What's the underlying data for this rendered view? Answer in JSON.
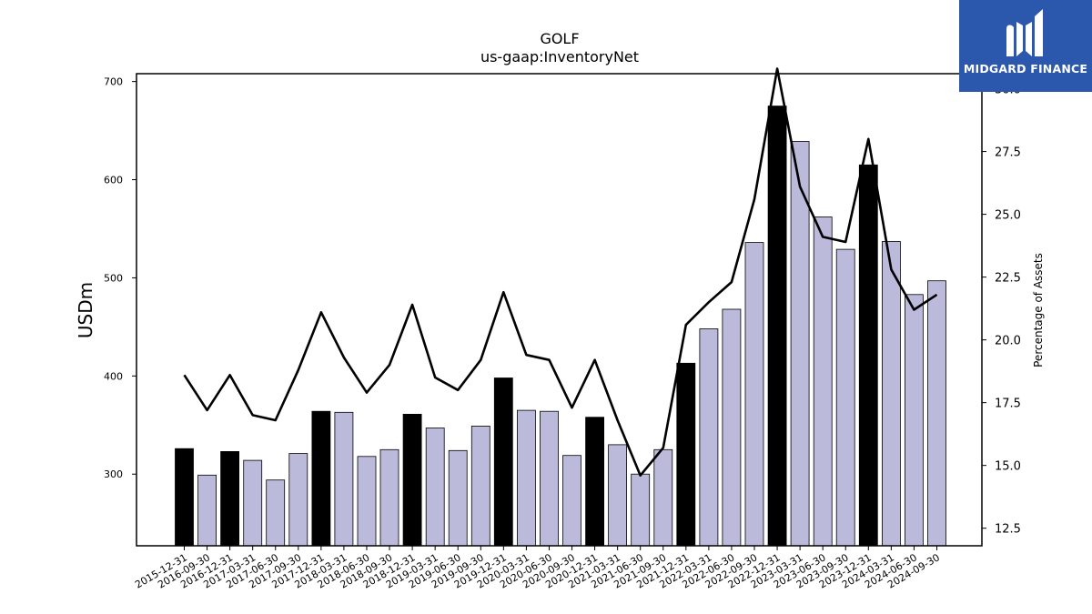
{
  "chart_data": {
    "type": "bar",
    "title": "GOLF",
    "subtitle": "us-gaap:InventoryNet",
    "ylabel": "USDm",
    "y2label": "Percentage of Assets",
    "ylim": [
      227,
      708
    ],
    "y2lim": [
      11.8,
      30.6
    ],
    "yticks": [
      300,
      400,
      500,
      600,
      700
    ],
    "y2ticks": [
      "12.5",
      "15.0",
      "17.5",
      "20.0",
      "22.5",
      "25.0",
      "27.5",
      "30.0"
    ],
    "categories": [
      "2015-12-31",
      "2016-09-30",
      "2016-12-31",
      "2017-03-31",
      "2017-06-30",
      "2017-09-30",
      "2017-12-31",
      "2018-03-31",
      "2018-06-30",
      "2018-09-30",
      "2018-12-31",
      "2019-03-31",
      "2019-06-30",
      "2019-09-30",
      "2019-12-31",
      "2020-03-31",
      "2020-06-30",
      "2020-09-30",
      "2020-12-31",
      "2021-03-31",
      "2021-06-30",
      "2021-09-30",
      "2021-12-31",
      "2022-03-31",
      "2022-06-30",
      "2022-09-30",
      "2022-12-31",
      "2023-03-31",
      "2023-06-30",
      "2023-09-30",
      "2023-12-31",
      "2024-03-31",
      "2024-06-30",
      "2024-09-30"
    ],
    "series": [
      {
        "values": [
          326,
          299,
          323,
          314,
          294,
          321,
          364,
          363,
          318,
          325,
          361,
          347,
          324,
          349,
          398,
          365,
          364,
          319,
          358,
          330,
          300,
          325,
          413,
          448,
          468,
          536,
          675,
          639,
          562,
          529,
          615,
          537,
          483,
          497
        ],
        "highlight": [
          true,
          false,
          true,
          false,
          false,
          false,
          true,
          false,
          false,
          false,
          true,
          false,
          false,
          false,
          true,
          false,
          false,
          false,
          true,
          false,
          false,
          false,
          true,
          false,
          false,
          false,
          true,
          false,
          false,
          false,
          true,
          false,
          false,
          false
        ]
      },
      {
        "axis": "right",
        "type": "line",
        "values": [
          18.6,
          17.2,
          18.6,
          17.0,
          16.8,
          18.8,
          21.1,
          19.3,
          17.9,
          19.0,
          21.4,
          18.5,
          18.0,
          19.2,
          21.9,
          19.4,
          19.2,
          17.3,
          19.2,
          16.8,
          14.6,
          15.7,
          20.6,
          21.5,
          22.3,
          25.6,
          30.8,
          26.1,
          24.1,
          23.9,
          28.0,
          22.8,
          21.2,
          21.8
        ]
      }
    ],
    "colors": {
      "highlight_bar": "#000000",
      "bar": "#bcbadb",
      "bar_edge": "#000000",
      "line": "#000000"
    },
    "legend": "none",
    "grid": false
  },
  "logo": {
    "text": "MIDGARD FINANCE",
    "background": "#2b57ad"
  }
}
